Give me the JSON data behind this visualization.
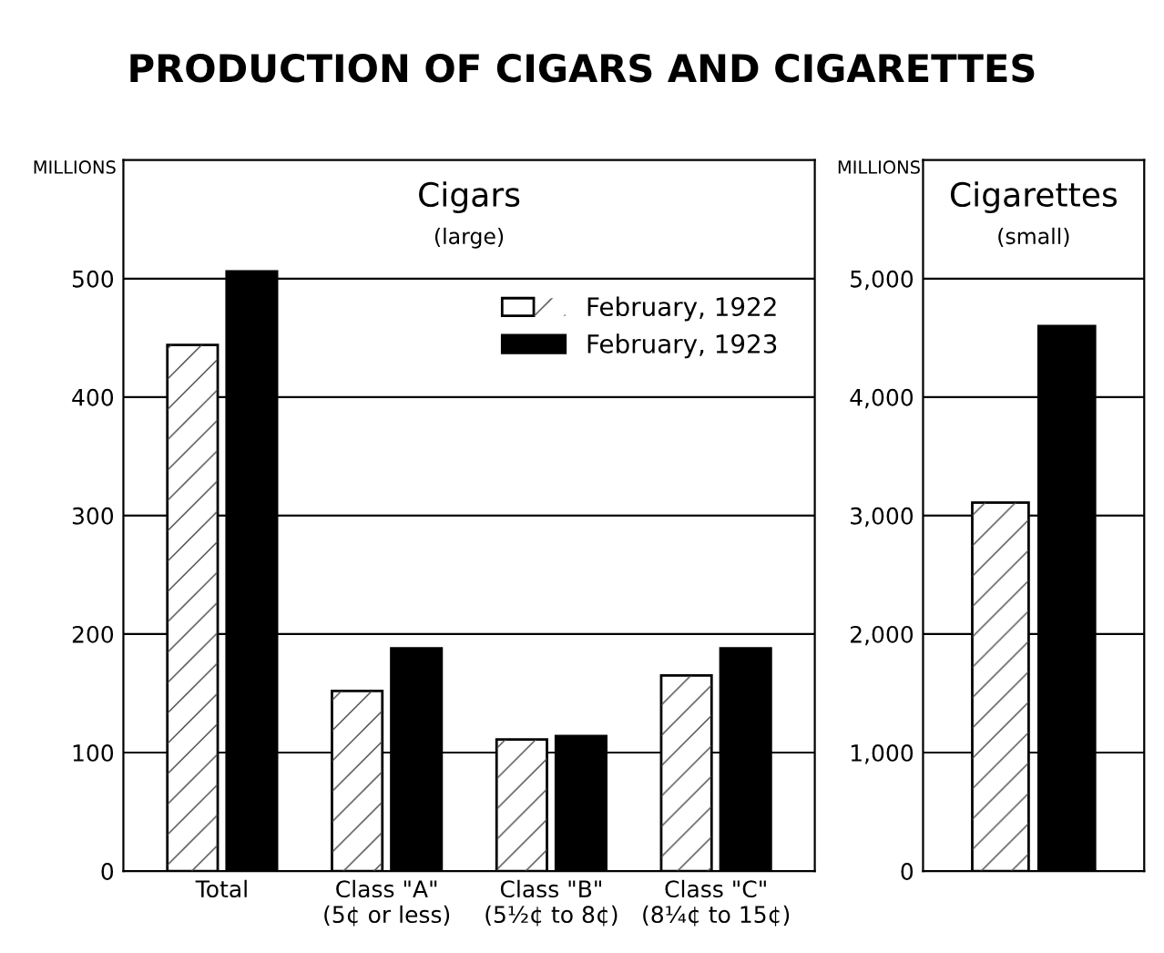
{
  "chart_data": [
    {
      "type": "bar",
      "title": "Cigars",
      "subtitle": "(large)",
      "ylabel": "MILLIONS",
      "annotations": [
        "PRODUCTION OF CIGARS AND CIGARETTES"
      ],
      "categories": [
        "Total",
        "Class \"A\"\n(5¢ or less)",
        "Class \"B\"\n(5½¢ to 8¢)",
        "Class \"C\"\n(8¼¢ to 15¢)"
      ],
      "series": [
        {
          "name": "February, 1922",
          "color": "#ffffff",
          "values": [
            444,
            152,
            111,
            165
          ]
        },
        {
          "name": "February, 1923",
          "color": "#000000",
          "values": [
            506,
            188,
            114,
            188
          ]
        }
      ],
      "ylim": [
        0,
        600
      ],
      "yticks": [
        0,
        100,
        200,
        300,
        400,
        500
      ],
      "grid": "y",
      "legend": "top right"
    },
    {
      "type": "bar",
      "title": "Cigarettes",
      "subtitle": "(small)",
      "ylabel": "MILLIONS",
      "categories": [
        null
      ],
      "series": [
        {
          "color": "#ffffff",
          "values": [
            3110
          ]
        },
        {
          "color": "#000000",
          "values": [
            4600
          ]
        }
      ],
      "ylim": [
        0,
        6000
      ],
      "yticks": [
        {
          "value": 0,
          "label": "0"
        },
        {
          "value": 1000,
          "label": "1,000"
        },
        {
          "value": 2000,
          "label": "2,000"
        },
        {
          "value": 3000,
          "label": "3,000"
        },
        {
          "value": 4000,
          "label": "4,000"
        },
        {
          "value": 5000,
          "label": "5,000"
        }
      ],
      "grid": "y"
    }
  ]
}
